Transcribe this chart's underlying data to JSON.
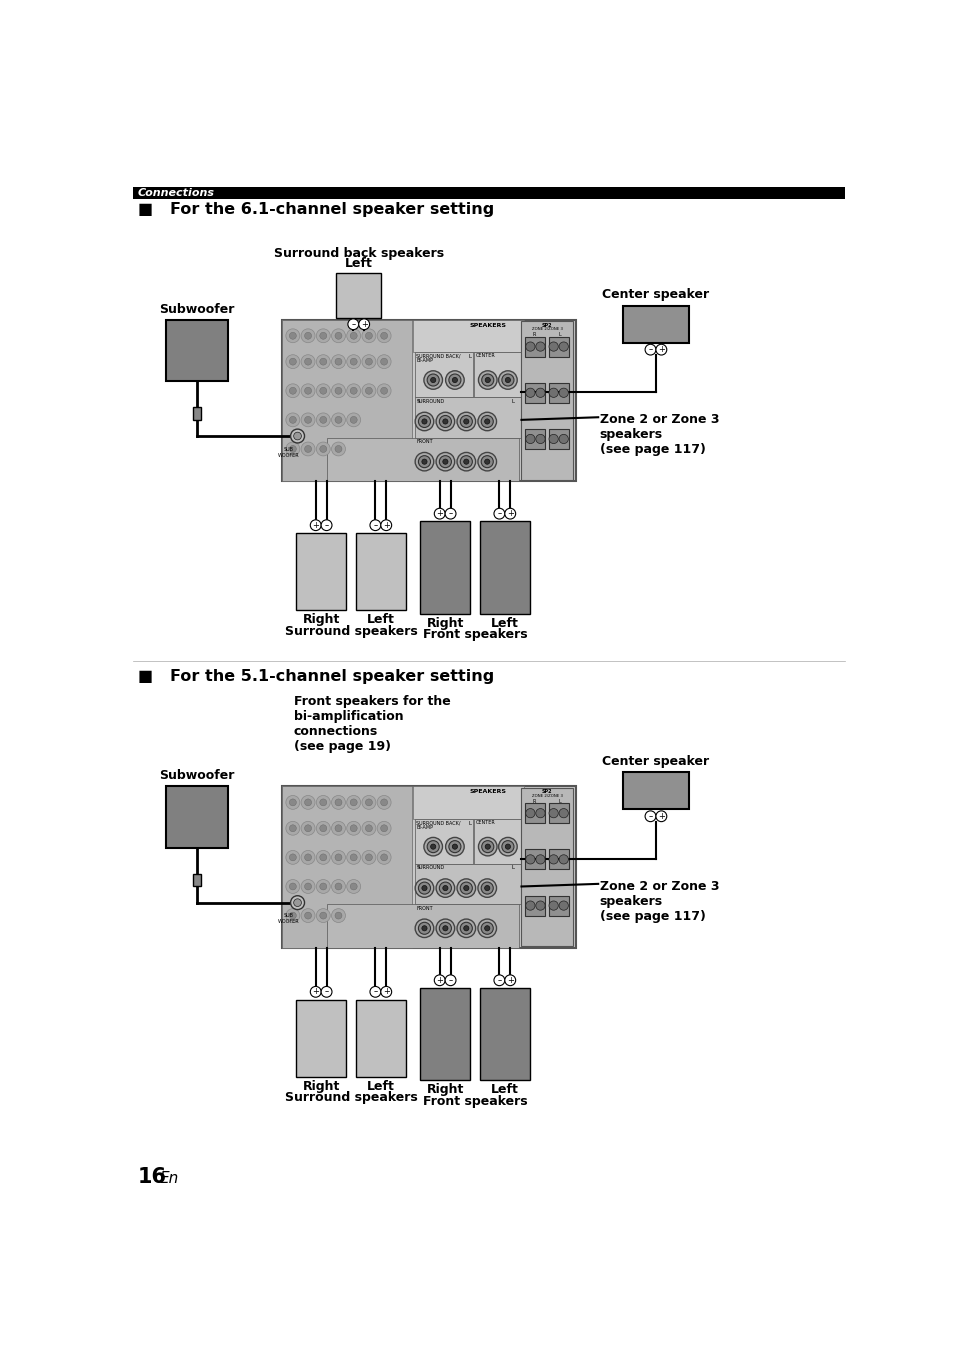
{
  "page_number": "16",
  "page_suffix": "En",
  "header_text": "Connections",
  "section1_title": "■   For the 6.1-channel speaker setting",
  "section2_title": "■   For the 5.1-channel speaker setting",
  "bg_color": "#ffffff",
  "header_bg": "#000000",
  "header_text_color": "#ffffff",
  "title_color": "#000000",
  "recv_outer_color": "#c8c8c8",
  "recv_left_panel_color": "#b8b8b8",
  "recv_right_panel_color": "#d0d0d0",
  "recv_top_stripe_color": "#c0c0c0",
  "recv_bottom_section_color": "#b4b4b4",
  "speaker_light_color": "#c0c0c0",
  "speaker_dark_color": "#808080",
  "subwoofer_color": "#808080",
  "center_speaker_color": "#909090",
  "terminal_color": "#ffffff",
  "zone_box_color": "#b0b0b0",
  "recv_circle_color": "#a8a8a8",
  "recv_circle_edge": "#888888",
  "woofer_terminal_color": "#d0d0d0",
  "line_color": "#000000"
}
